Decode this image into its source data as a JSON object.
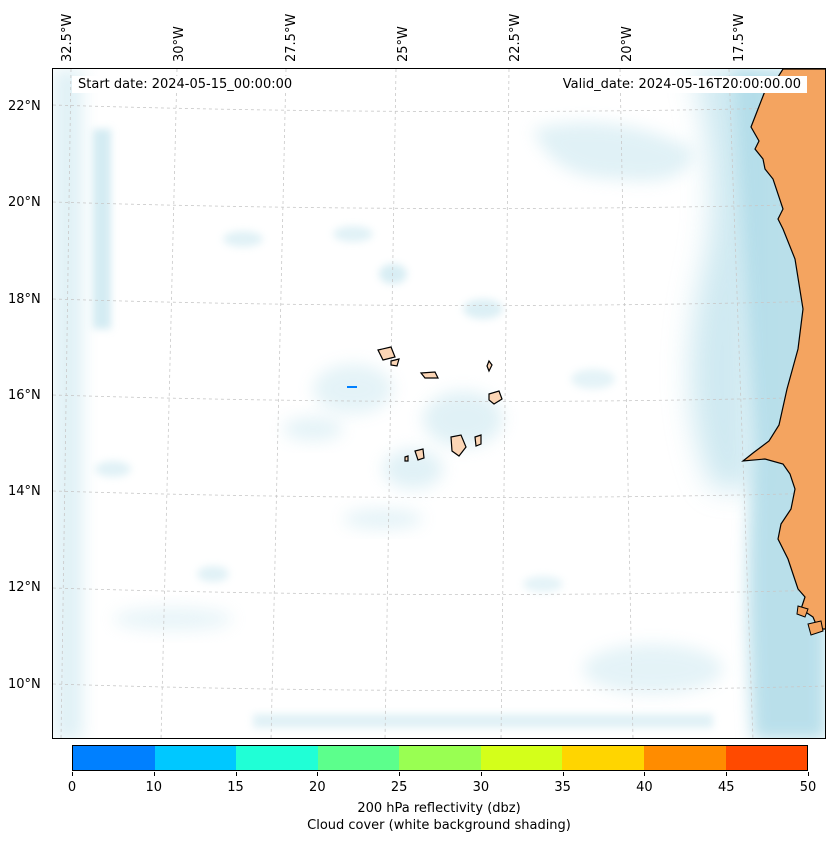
{
  "map": {
    "lon_labels": [
      "32.5°W",
      "30°W",
      "27.5°W",
      "25°W",
      "22.5°W",
      "20°W",
      "17.5°W"
    ],
    "lat_labels": [
      "22°N",
      "20°N",
      "18°N",
      "16°N",
      "14°N",
      "12°N",
      "10°N"
    ],
    "start_date": "Start date: 2024-05-15_00:00:00",
    "valid_date": "Valid_date: 2024-05-16T20:00:00.00",
    "land_color": "#f4a460",
    "island_color": "#fbd5b5",
    "cloud_color": "#a8d8e6"
  },
  "colorbar": {
    "ticks": [
      "0",
      "10",
      "15",
      "20",
      "25",
      "30",
      "35",
      "40",
      "45",
      "50"
    ],
    "colors": [
      "#0080ff",
      "#00c8ff",
      "#20ffd6",
      "#5cff8c",
      "#99ff52",
      "#d4ff1a",
      "#ffd500",
      "#ff8c00",
      "#ff4a00"
    ],
    "label_line1": "200 hPa reflectivity (dbz)",
    "label_line2": "Cloud cover (white background shading)"
  }
}
